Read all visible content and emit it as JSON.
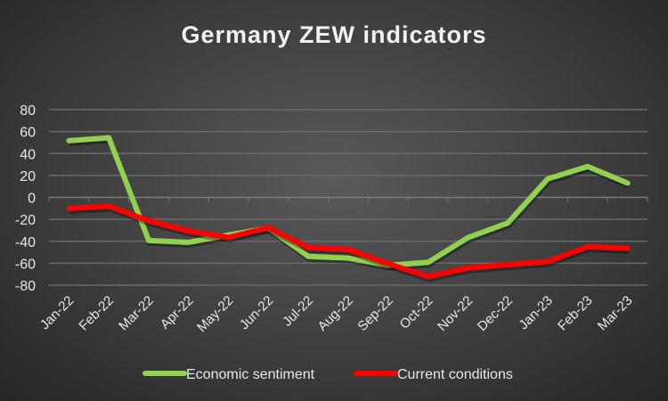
{
  "chart_data": {
    "type": "line",
    "title": "Germany ZEW indicators",
    "xlabel": "",
    "ylabel": "",
    "ylim": [
      -80,
      80
    ],
    "yticks": [
      80,
      60,
      40,
      20,
      0,
      -20,
      -40,
      -60,
      -80
    ],
    "grid": true,
    "legend_position": "bottom",
    "categories": [
      "Jan-22",
      "Feb-22",
      "Mar-22",
      "Apr-22",
      "May-22",
      "Jun-22",
      "Jul-22",
      "Aug-22",
      "Sep-22",
      "Oct-22",
      "Nov-22",
      "Dec-22",
      "Jan-23",
      "Feb-23",
      "Mar-23"
    ],
    "series": [
      {
        "name": "Economic sentiment",
        "color": "#92d050",
        "values": [
          51.7,
          54.3,
          -39.3,
          -41.0,
          -34.3,
          -28.0,
          -53.8,
          -55.3,
          -61.9,
          -59.2,
          -36.7,
          -23.3,
          16.9,
          28.1,
          13.0
        ]
      },
      {
        "name": "Current conditions",
        "color": "#ff0000",
        "values": [
          -10.2,
          -8.1,
          -21.4,
          -30.8,
          -36.5,
          -27.6,
          -45.8,
          -47.6,
          -60.5,
          -72.2,
          -64.5,
          -61.4,
          -58.6,
          -45.1,
          -46.5
        ]
      }
    ]
  }
}
